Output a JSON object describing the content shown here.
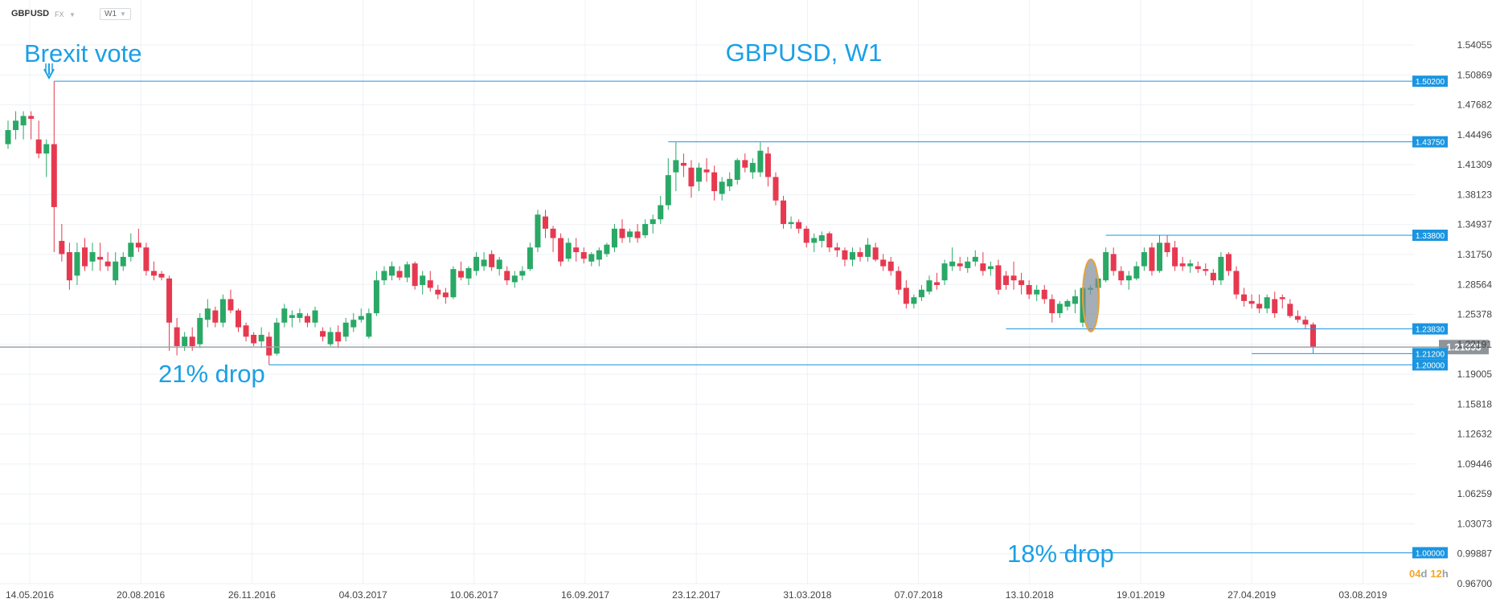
{
  "toolbar": {
    "symbol": "GBPUSD",
    "market": "FX",
    "timeframe": "W1"
  },
  "colors": {
    "up": "#2aa866",
    "down": "#e63950",
    "accent": "#1aa0e6",
    "level_line": "#1b95e0",
    "price_line": "#9ea3a8",
    "timer": "#f5a623"
  },
  "timer": {
    "days": "04",
    "d": "d",
    "hours": "12",
    "h": "h"
  },
  "chart_data": {
    "type": "candlestick",
    "title": "GBPUSD, W1",
    "xlabel": "",
    "ylabel": "",
    "ylim": [
      0.967,
      1.5406
    ],
    "grid": true,
    "y_ticks": [
      "1.54055",
      "1.50869",
      "1.47682",
      "1.44496",
      "1.41309",
      "1.38123",
      "1.34937",
      "1.31750",
      "1.28564",
      "1.25378",
      "1.22191",
      "1.19005",
      "1.15818",
      "1.12632",
      "1.09446",
      "1.06259",
      "1.03073",
      "0.99887",
      "0.96700"
    ],
    "x_ticks": [
      "14.05.2016",
      "20.08.2016",
      "26.11.2016",
      "04.03.2017",
      "10.06.2017",
      "16.09.2017",
      "23.12.2017",
      "31.03.2018",
      "07.07.2018",
      "13.10.2018",
      "19.01.2019",
      "27.04.2019",
      "03.08.2019"
    ],
    "current_price": "1.21893",
    "levels": [
      {
        "label": "1.50200",
        "value": 1.502,
        "from_week": 6
      },
      {
        "label": "1.43750",
        "value": 1.4375,
        "from_week": 86
      },
      {
        "label": "1.33800",
        "value": 1.338,
        "from_week": 143
      },
      {
        "label": "1.23830",
        "value": 1.2383,
        "from_week": 130
      },
      {
        "label": "1.21200",
        "value": 1.212,
        "from_week": 162
      },
      {
        "label": "1.20000",
        "value": 1.2,
        "from_week": 34
      },
      {
        "label": "1.00000",
        "value": 1.0,
        "from_week": 137
      }
    ],
    "annotations": {
      "brexit": "Brexit vote",
      "drop21": "21% drop",
      "drop18": "18% drop"
    },
    "candles": [
      {
        "o": 1.435,
        "h": 1.46,
        "l": 1.43,
        "c": 1.45
      },
      {
        "o": 1.45,
        "h": 1.47,
        "l": 1.44,
        "c": 1.46
      },
      {
        "o": 1.455,
        "h": 1.47,
        "l": 1.44,
        "c": 1.465
      },
      {
        "o": 1.465,
        "h": 1.47,
        "l": 1.44,
        "c": 1.462
      },
      {
        "o": 1.44,
        "h": 1.46,
        "l": 1.42,
        "c": 1.425
      },
      {
        "o": 1.425,
        "h": 1.44,
        "l": 1.4,
        "c": 1.435
      },
      {
        "o": 1.435,
        "h": 1.502,
        "l": 1.32,
        "c": 1.368
      },
      {
        "o": 1.332,
        "h": 1.35,
        "l": 1.31,
        "c": 1.318
      },
      {
        "o": 1.32,
        "h": 1.33,
        "l": 1.28,
        "c": 1.29
      },
      {
        "o": 1.295,
        "h": 1.33,
        "l": 1.285,
        "c": 1.32
      },
      {
        "o": 1.325,
        "h": 1.335,
        "l": 1.3,
        "c": 1.305
      },
      {
        "o": 1.31,
        "h": 1.33,
        "l": 1.3,
        "c": 1.32
      },
      {
        "o": 1.315,
        "h": 1.33,
        "l": 1.3,
        "c": 1.312
      },
      {
        "o": 1.31,
        "h": 1.32,
        "l": 1.3,
        "c": 1.305
      },
      {
        "o": 1.29,
        "h": 1.32,
        "l": 1.285,
        "c": 1.31
      },
      {
        "o": 1.305,
        "h": 1.32,
        "l": 1.3,
        "c": 1.315
      },
      {
        "o": 1.315,
        "h": 1.34,
        "l": 1.31,
        "c": 1.33
      },
      {
        "o": 1.33,
        "h": 1.345,
        "l": 1.32,
        "c": 1.325
      },
      {
        "o": 1.325,
        "h": 1.33,
        "l": 1.295,
        "c": 1.3
      },
      {
        "o": 1.3,
        "h": 1.31,
        "l": 1.29,
        "c": 1.295
      },
      {
        "o": 1.297,
        "h": 1.3,
        "l": 1.29,
        "c": 1.293
      },
      {
        "o": 1.292,
        "h": 1.295,
        "l": 1.215,
        "c": 1.245
      },
      {
        "o": 1.24,
        "h": 1.25,
        "l": 1.21,
        "c": 1.22
      },
      {
        "o": 1.22,
        "h": 1.235,
        "l": 1.215,
        "c": 1.23
      },
      {
        "o": 1.23,
        "h": 1.24,
        "l": 1.215,
        "c": 1.22
      },
      {
        "o": 1.222,
        "h": 1.255,
        "l": 1.218,
        "c": 1.25
      },
      {
        "o": 1.248,
        "h": 1.27,
        "l": 1.24,
        "c": 1.26
      },
      {
        "o": 1.258,
        "h": 1.262,
        "l": 1.24,
        "c": 1.245
      },
      {
        "o": 1.245,
        "h": 1.275,
        "l": 1.24,
        "c": 1.27
      },
      {
        "o": 1.27,
        "h": 1.28,
        "l": 1.255,
        "c": 1.258
      },
      {
        "o": 1.258,
        "h": 1.26,
        "l": 1.235,
        "c": 1.24
      },
      {
        "o": 1.242,
        "h": 1.245,
        "l": 1.225,
        "c": 1.23
      },
      {
        "o": 1.232,
        "h": 1.235,
        "l": 1.22,
        "c": 1.223
      },
      {
        "o": 1.225,
        "h": 1.24,
        "l": 1.218,
        "c": 1.232
      },
      {
        "o": 1.23,
        "h": 1.235,
        "l": 1.2,
        "c": 1.21
      },
      {
        "o": 1.212,
        "h": 1.25,
        "l": 1.21,
        "c": 1.245
      },
      {
        "o": 1.245,
        "h": 1.265,
        "l": 1.24,
        "c": 1.26
      },
      {
        "o": 1.25,
        "h": 1.258,
        "l": 1.24,
        "c": 1.253
      },
      {
        "o": 1.25,
        "h": 1.26,
        "l": 1.245,
        "c": 1.255
      },
      {
        "o": 1.252,
        "h": 1.255,
        "l": 1.24,
        "c": 1.245
      },
      {
        "o": 1.245,
        "h": 1.262,
        "l": 1.24,
        "c": 1.258
      },
      {
        "o": 1.236,
        "h": 1.24,
        "l": 1.225,
        "c": 1.23
      },
      {
        "o": 1.222,
        "h": 1.24,
        "l": 1.22,
        "c": 1.235
      },
      {
        "o": 1.235,
        "h": 1.242,
        "l": 1.218,
        "c": 1.225
      },
      {
        "o": 1.23,
        "h": 1.25,
        "l": 1.225,
        "c": 1.245
      },
      {
        "o": 1.24,
        "h": 1.255,
        "l": 1.235,
        "c": 1.248
      },
      {
        "o": 1.248,
        "h": 1.26,
        "l": 1.245,
        "c": 1.252
      },
      {
        "o": 1.23,
        "h": 1.26,
        "l": 1.228,
        "c": 1.255
      },
      {
        "o": 1.255,
        "h": 1.3,
        "l": 1.252,
        "c": 1.29
      },
      {
        "o": 1.29,
        "h": 1.305,
        "l": 1.285,
        "c": 1.3
      },
      {
        "o": 1.295,
        "h": 1.31,
        "l": 1.29,
        "c": 1.305
      },
      {
        "o": 1.3,
        "h": 1.305,
        "l": 1.29,
        "c": 1.293
      },
      {
        "o": 1.293,
        "h": 1.31,
        "l": 1.288,
        "c": 1.307
      },
      {
        "o": 1.308,
        "h": 1.31,
        "l": 1.28,
        "c": 1.284
      },
      {
        "o": 1.285,
        "h": 1.3,
        "l": 1.275,
        "c": 1.295
      },
      {
        "o": 1.29,
        "h": 1.3,
        "l": 1.278,
        "c": 1.282
      },
      {
        "o": 1.28,
        "h": 1.285,
        "l": 1.27,
        "c": 1.275
      },
      {
        "o": 1.277,
        "h": 1.282,
        "l": 1.265,
        "c": 1.272
      },
      {
        "o": 1.272,
        "h": 1.305,
        "l": 1.27,
        "c": 1.302
      },
      {
        "o": 1.3,
        "h": 1.31,
        "l": 1.29,
        "c": 1.293
      },
      {
        "o": 1.292,
        "h": 1.305,
        "l": 1.285,
        "c": 1.303
      },
      {
        "o": 1.3,
        "h": 1.32,
        "l": 1.295,
        "c": 1.315
      },
      {
        "o": 1.305,
        "h": 1.32,
        "l": 1.3,
        "c": 1.312
      },
      {
        "o": 1.318,
        "h": 1.322,
        "l": 1.3,
        "c": 1.304
      },
      {
        "o": 1.302,
        "h": 1.315,
        "l": 1.295,
        "c": 1.312
      },
      {
        "o": 1.3,
        "h": 1.305,
        "l": 1.285,
        "c": 1.29
      },
      {
        "o": 1.288,
        "h": 1.3,
        "l": 1.282,
        "c": 1.295
      },
      {
        "o": 1.295,
        "h": 1.305,
        "l": 1.29,
        "c": 1.3
      },
      {
        "o": 1.302,
        "h": 1.33,
        "l": 1.3,
        "c": 1.325
      },
      {
        "o": 1.325,
        "h": 1.365,
        "l": 1.32,
        "c": 1.36
      },
      {
        "o": 1.358,
        "h": 1.365,
        "l": 1.335,
        "c": 1.345
      },
      {
        "o": 1.345,
        "h": 1.348,
        "l": 1.32,
        "c": 1.335
      },
      {
        "o": 1.335,
        "h": 1.34,
        "l": 1.305,
        "c": 1.31
      },
      {
        "o": 1.313,
        "h": 1.335,
        "l": 1.31,
        "c": 1.33
      },
      {
        "o": 1.325,
        "h": 1.335,
        "l": 1.31,
        "c": 1.32
      },
      {
        "o": 1.32,
        "h": 1.325,
        "l": 1.308,
        "c": 1.313
      },
      {
        "o": 1.31,
        "h": 1.32,
        "l": 1.305,
        "c": 1.318
      },
      {
        "o": 1.312,
        "h": 1.325,
        "l": 1.305,
        "c": 1.322
      },
      {
        "o": 1.318,
        "h": 1.33,
        "l": 1.315,
        "c": 1.328
      },
      {
        "o": 1.325,
        "h": 1.35,
        "l": 1.32,
        "c": 1.345
      },
      {
        "o": 1.345,
        "h": 1.355,
        "l": 1.33,
        "c": 1.335
      },
      {
        "o": 1.336,
        "h": 1.345,
        "l": 1.33,
        "c": 1.342
      },
      {
        "o": 1.342,
        "h": 1.35,
        "l": 1.33,
        "c": 1.335
      },
      {
        "o": 1.338,
        "h": 1.355,
        "l": 1.335,
        "c": 1.35
      },
      {
        "o": 1.35,
        "h": 1.36,
        "l": 1.34,
        "c": 1.355
      },
      {
        "o": 1.355,
        "h": 1.38,
        "l": 1.35,
        "c": 1.37
      },
      {
        "o": 1.37,
        "h": 1.42,
        "l": 1.365,
        "c": 1.402
      },
      {
        "o": 1.405,
        "h": 1.437,
        "l": 1.385,
        "c": 1.418
      },
      {
        "o": 1.415,
        "h": 1.425,
        "l": 1.4,
        "c": 1.412
      },
      {
        "o": 1.41,
        "h": 1.418,
        "l": 1.378,
        "c": 1.39
      },
      {
        "o": 1.395,
        "h": 1.415,
        "l": 1.385,
        "c": 1.41
      },
      {
        "o": 1.408,
        "h": 1.42,
        "l": 1.395,
        "c": 1.405
      },
      {
        "o": 1.405,
        "h": 1.412,
        "l": 1.375,
        "c": 1.385
      },
      {
        "o": 1.382,
        "h": 1.4,
        "l": 1.375,
        "c": 1.395
      },
      {
        "o": 1.39,
        "h": 1.405,
        "l": 1.385,
        "c": 1.398
      },
      {
        "o": 1.397,
        "h": 1.42,
        "l": 1.392,
        "c": 1.418
      },
      {
        "o": 1.418,
        "h": 1.425,
        "l": 1.405,
        "c": 1.41
      },
      {
        "o": 1.405,
        "h": 1.42,
        "l": 1.398,
        "c": 1.415
      },
      {
        "o": 1.405,
        "h": 1.437,
        "l": 1.4,
        "c": 1.428
      },
      {
        "o": 1.425,
        "h": 1.432,
        "l": 1.39,
        "c": 1.4
      },
      {
        "o": 1.4,
        "h": 1.405,
        "l": 1.37,
        "c": 1.375
      },
      {
        "o": 1.375,
        "h": 1.38,
        "l": 1.345,
        "c": 1.35
      },
      {
        "o": 1.35,
        "h": 1.358,
        "l": 1.345,
        "c": 1.352
      },
      {
        "o": 1.352,
        "h": 1.355,
        "l": 1.34,
        "c": 1.345
      },
      {
        "o": 1.345,
        "h": 1.348,
        "l": 1.325,
        "c": 1.33
      },
      {
        "o": 1.33,
        "h": 1.34,
        "l": 1.32,
        "c": 1.335
      },
      {
        "o": 1.332,
        "h": 1.342,
        "l": 1.325,
        "c": 1.338
      },
      {
        "o": 1.34,
        "h": 1.342,
        "l": 1.32,
        "c": 1.325
      },
      {
        "o": 1.325,
        "h": 1.33,
        "l": 1.315,
        "c": 1.322
      },
      {
        "o": 1.322,
        "h": 1.325,
        "l": 1.305,
        "c": 1.312
      },
      {
        "o": 1.312,
        "h": 1.325,
        "l": 1.305,
        "c": 1.32
      },
      {
        "o": 1.32,
        "h": 1.325,
        "l": 1.31,
        "c": 1.315
      },
      {
        "o": 1.315,
        "h": 1.335,
        "l": 1.31,
        "c": 1.328
      },
      {
        "o": 1.325,
        "h": 1.33,
        "l": 1.31,
        "c": 1.312
      },
      {
        "o": 1.312,
        "h": 1.318,
        "l": 1.3,
        "c": 1.305
      },
      {
        "o": 1.31,
        "h": 1.315,
        "l": 1.295,
        "c": 1.3
      },
      {
        "o": 1.3,
        "h": 1.305,
        "l": 1.275,
        "c": 1.28
      },
      {
        "o": 1.282,
        "h": 1.29,
        "l": 1.26,
        "c": 1.265
      },
      {
        "o": 1.265,
        "h": 1.275,
        "l": 1.26,
        "c": 1.272
      },
      {
        "o": 1.272,
        "h": 1.285,
        "l": 1.268,
        "c": 1.28
      },
      {
        "o": 1.278,
        "h": 1.295,
        "l": 1.275,
        "c": 1.29
      },
      {
        "o": 1.288,
        "h": 1.298,
        "l": 1.28,
        "c": 1.285
      },
      {
        "o": 1.29,
        "h": 1.312,
        "l": 1.285,
        "c": 1.308
      },
      {
        "o": 1.305,
        "h": 1.325,
        "l": 1.3,
        "c": 1.31
      },
      {
        "o": 1.308,
        "h": 1.315,
        "l": 1.3,
        "c": 1.305
      },
      {
        "o": 1.303,
        "h": 1.315,
        "l": 1.298,
        "c": 1.31
      },
      {
        "o": 1.31,
        "h": 1.322,
        "l": 1.305,
        "c": 1.315
      },
      {
        "o": 1.308,
        "h": 1.32,
        "l": 1.295,
        "c": 1.3
      },
      {
        "o": 1.302,
        "h": 1.31,
        "l": 1.295,
        "c": 1.305
      },
      {
        "o": 1.306,
        "h": 1.312,
        "l": 1.275,
        "c": 1.28
      },
      {
        "o": 1.295,
        "h": 1.3,
        "l": 1.28,
        "c": 1.285
      },
      {
        "o": 1.295,
        "h": 1.31,
        "l": 1.28,
        "c": 1.29
      },
      {
        "o": 1.29,
        "h": 1.298,
        "l": 1.275,
        "c": 1.285
      },
      {
        "o": 1.285,
        "h": 1.29,
        "l": 1.27,
        "c": 1.275
      },
      {
        "o": 1.275,
        "h": 1.285,
        "l": 1.268,
        "c": 1.28
      },
      {
        "o": 1.28,
        "h": 1.285,
        "l": 1.265,
        "c": 1.27
      },
      {
        "o": 1.27,
        "h": 1.275,
        "l": 1.245,
        "c": 1.255
      },
      {
        "o": 1.255,
        "h": 1.268,
        "l": 1.25,
        "c": 1.265
      },
      {
        "o": 1.262,
        "h": 1.27,
        "l": 1.258,
        "c": 1.268
      },
      {
        "o": 1.265,
        "h": 1.28,
        "l": 1.255,
        "c": 1.273
      },
      {
        "o": 1.245,
        "h": 1.285,
        "l": 1.24,
        "c": 1.282
      },
      {
        "o": 1.28,
        "h": 1.285,
        "l": 1.275,
        "c": 1.282
      },
      {
        "o": 1.282,
        "h": 1.295,
        "l": 1.278,
        "c": 1.292
      },
      {
        "o": 1.29,
        "h": 1.325,
        "l": 1.288,
        "c": 1.32
      },
      {
        "o": 1.318,
        "h": 1.325,
        "l": 1.295,
        "c": 1.3
      },
      {
        "o": 1.3,
        "h": 1.305,
        "l": 1.285,
        "c": 1.29
      },
      {
        "o": 1.29,
        "h": 1.3,
        "l": 1.28,
        "c": 1.295
      },
      {
        "o": 1.292,
        "h": 1.31,
        "l": 1.29,
        "c": 1.305
      },
      {
        "o": 1.305,
        "h": 1.325,
        "l": 1.3,
        "c": 1.32
      },
      {
        "o": 1.325,
        "h": 1.33,
        "l": 1.295,
        "c": 1.3
      },
      {
        "o": 1.3,
        "h": 1.338,
        "l": 1.298,
        "c": 1.33
      },
      {
        "o": 1.33,
        "h": 1.338,
        "l": 1.315,
        "c": 1.32
      },
      {
        "o": 1.325,
        "h": 1.332,
        "l": 1.3,
        "c": 1.305
      },
      {
        "o": 1.308,
        "h": 1.315,
        "l": 1.3,
        "c": 1.305
      },
      {
        "o": 1.305,
        "h": 1.312,
        "l": 1.298,
        "c": 1.308
      },
      {
        "o": 1.305,
        "h": 1.31,
        "l": 1.298,
        "c": 1.302
      },
      {
        "o": 1.302,
        "h": 1.308,
        "l": 1.295,
        "c": 1.3
      },
      {
        "o": 1.298,
        "h": 1.302,
        "l": 1.285,
        "c": 1.29
      },
      {
        "o": 1.29,
        "h": 1.32,
        "l": 1.285,
        "c": 1.315
      },
      {
        "o": 1.318,
        "h": 1.32,
        "l": 1.295,
        "c": 1.3
      },
      {
        "o": 1.3,
        "h": 1.305,
        "l": 1.27,
        "c": 1.275
      },
      {
        "o": 1.275,
        "h": 1.282,
        "l": 1.262,
        "c": 1.268
      },
      {
        "o": 1.268,
        "h": 1.275,
        "l": 1.26,
        "c": 1.265
      },
      {
        "o": 1.265,
        "h": 1.275,
        "l": 1.255,
        "c": 1.26
      },
      {
        "o": 1.26,
        "h": 1.275,
        "l": 1.255,
        "c": 1.272
      },
      {
        "o": 1.27,
        "h": 1.278,
        "l": 1.25,
        "c": 1.255
      },
      {
        "o": 1.272,
        "h": 1.275,
        "l": 1.26,
        "c": 1.27
      },
      {
        "o": 1.265,
        "h": 1.27,
        "l": 1.25,
        "c": 1.252
      },
      {
        "o": 1.252,
        "h": 1.258,
        "l": 1.245,
        "c": 1.248
      },
      {
        "o": 1.248,
        "h": 1.252,
        "l": 1.238,
        "c": 1.243
      },
      {
        "o": 1.243,
        "h": 1.245,
        "l": 1.212,
        "c": 1.219
      }
    ]
  }
}
